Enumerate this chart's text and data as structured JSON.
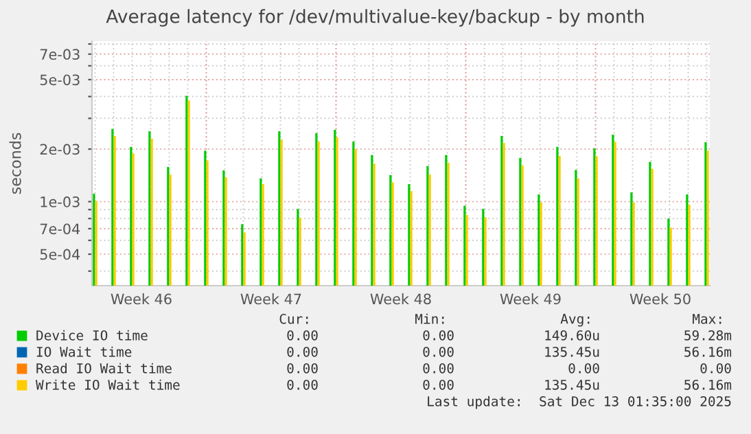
{
  "chart_data": {
    "type": "bar",
    "title": "Average latency for /dev/multivalue-key/backup - by month",
    "ylabel": "seconds",
    "x": [
      "2025-11-10",
      "2025-11-11",
      "2025-11-12",
      "2025-11-13",
      "2025-11-14",
      "2025-11-15",
      "2025-11-16",
      "2025-11-17",
      "2025-11-18",
      "2025-11-19",
      "2025-11-20",
      "2025-11-21",
      "2025-11-22",
      "2025-11-23",
      "2025-11-24",
      "2025-11-25",
      "2025-11-26",
      "2025-11-27",
      "2025-11-28",
      "2025-11-29",
      "2025-11-30",
      "2025-12-01",
      "2025-12-02",
      "2025-12-03",
      "2025-12-04",
      "2025-12-05",
      "2025-12-06",
      "2025-12-07",
      "2025-12-08",
      "2025-12-09",
      "2025-12-10",
      "2025-12-11",
      "2025-12-12",
      "2025-12-13"
    ],
    "series": [
      {
        "name": "Device IO time",
        "color": "#00cc00",
        "values": [
          0.00111,
          0.00261,
          0.00206,
          0.00253,
          0.00158,
          0.00404,
          0.00196,
          0.00151,
          0.000743,
          0.00136,
          0.00253,
          0.000908,
          0.00247,
          0.00258,
          0.00221,
          0.00185,
          0.00142,
          0.00126,
          0.0016,
          0.00185,
          0.000947,
          0.000908,
          0.00238,
          0.00178,
          0.0011,
          0.00206,
          0.00152,
          0.00202,
          0.00242,
          0.00113,
          0.00169,
          0.0008,
          0.0011,
          0.00219
        ]
      },
      {
        "name": "IO Wait time",
        "color": "#0066b3",
        "values": [
          null,
          null,
          null,
          null,
          null,
          null,
          null,
          null,
          null,
          null,
          null,
          null,
          null,
          null,
          null,
          null,
          null,
          null,
          null,
          null,
          null,
          null,
          null,
          null,
          null,
          null,
          null,
          null,
          null,
          null,
          null,
          null,
          null,
          null
        ]
      },
      {
        "name": "Read IO Wait time",
        "color": "#ff8000",
        "values": [
          null,
          null,
          null,
          null,
          null,
          null,
          null,
          null,
          null,
          null,
          null,
          null,
          null,
          null,
          null,
          null,
          null,
          null,
          null,
          null,
          null,
          null,
          null,
          null,
          null,
          null,
          null,
          null,
          null,
          null,
          null,
          null,
          null,
          null
        ]
      },
      {
        "name": "Write IO Wait time",
        "color": "#ffcc00",
        "values": [
          0.00101,
          0.00238,
          0.00189,
          0.0023,
          0.00143,
          0.0038,
          0.00172,
          0.00138,
          0.000666,
          0.00126,
          0.00227,
          0.000809,
          0.00221,
          0.00234,
          0.002,
          0.00165,
          0.00129,
          0.00115,
          0.00143,
          0.00167,
          0.000839,
          0.000814,
          0.00217,
          0.00161,
          0.00099,
          0.00183,
          0.00136,
          0.00182,
          0.0022,
          0.00099,
          0.00154,
          0.00071,
          0.00096,
          0.00196
        ]
      }
    ],
    "log": "y",
    "ylim": [
      0.00033,
      0.0083
    ],
    "yticks": [
      {
        "value": 0.0004,
        "label": null
      },
      {
        "value": 0.0005,
        "label": "5e-04"
      },
      {
        "value": 0.0006,
        "label": null
      },
      {
        "value": 0.0007,
        "label": "7e-04"
      },
      {
        "value": 0.0008,
        "label": null
      },
      {
        "value": 0.0009,
        "label": null
      },
      {
        "value": 0.001,
        "label": "1e-03"
      },
      {
        "value": 0.002,
        "label": "2e-03"
      },
      {
        "value": 0.003,
        "label": null
      },
      {
        "value": 0.004,
        "label": null
      },
      {
        "value": 0.005,
        "label": "5e-03"
      },
      {
        "value": 0.006,
        "label": null
      },
      {
        "value": 0.007,
        "label": "7e-03"
      },
      {
        "value": 0.008,
        "label": null
      }
    ],
    "xlim": [
      "2025-11-09T20:00",
      "2025-12-13T04:00"
    ],
    "xticks": [
      {
        "value": "2025-11-12T12:00",
        "label": "Week 46"
      },
      {
        "value": "2025-11-19T12:00",
        "label": "Week 47"
      },
      {
        "value": "2025-11-26T12:00",
        "label": "Week 48"
      },
      {
        "value": "2025-12-03T12:00",
        "label": "Week 49"
      },
      {
        "value": "2025-12-10T12:00",
        "label": "Week 50"
      }
    ],
    "ref_lines": [
      {
        "axis": "x",
        "value": "2025-11-16",
        "color": "#e8a0a0",
        "line_style": "dotted"
      },
      {
        "axis": "x",
        "value": "2025-11-23",
        "color": "#e8a0a0",
        "line_style": "dotted"
      },
      {
        "axis": "x",
        "value": "2025-11-30",
        "color": "#e8a0a0",
        "line_style": "dotted"
      },
      {
        "axis": "x",
        "value": "2025-12-07",
        "color": "#e8a0a0",
        "line_style": "dotted"
      }
    ],
    "grid": true,
    "legend": "bottom",
    "annotations": [
      "Cur:",
      "Min:",
      "Avg:",
      "Max:",
      "0.00",
      "0.00",
      "149.60u",
      "59.28m",
      "0.00",
      "0.00",
      "135.45u",
      "56.16m",
      "0.00",
      "0.00",
      "0.00",
      "0.00",
      "0.00",
      "0.00",
      "135.45u",
      "56.16m",
      "Last update:  Sat Dec 13 01:35:00 2025"
    ]
  }
}
